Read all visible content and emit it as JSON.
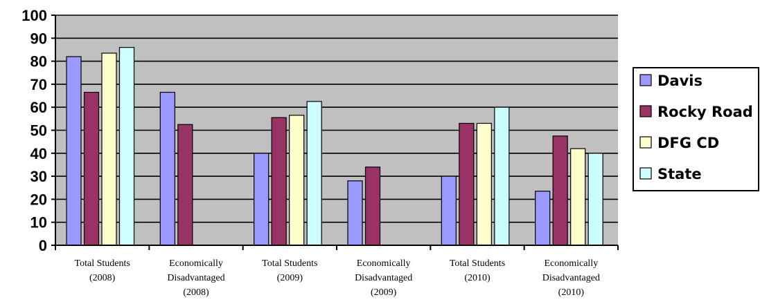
{
  "chart_data": {
    "type": "bar",
    "title": "",
    "xlabel": "",
    "ylabel": "",
    "ylim": [
      0,
      100
    ],
    "yticks": [
      0,
      10,
      20,
      30,
      40,
      50,
      60,
      70,
      80,
      90,
      100
    ],
    "grid": true,
    "legend_position": "right",
    "categories": [
      [
        "Total Students",
        "(2008)"
      ],
      [
        "Economically",
        "Disadvantaged",
        "(2008)"
      ],
      [
        "Total Students",
        "(2009)"
      ],
      [
        "Economically",
        "Disadvantaged",
        "(2009)"
      ],
      [
        "Total Students",
        "(2010)"
      ],
      [
        "Economically",
        "Disadvantaged",
        "(2010)"
      ]
    ],
    "series": [
      {
        "name": "Davis",
        "color": "#9999ff",
        "values": [
          82,
          66.5,
          40,
          28,
          30,
          23.5
        ]
      },
      {
        "name": "Rocky Road",
        "color": "#993366",
        "values": [
          66.5,
          52.5,
          55.5,
          34,
          53,
          47.5
        ]
      },
      {
        "name": "DFG CD",
        "color": "#ffffcc",
        "values": [
          83.5,
          null,
          56.5,
          null,
          53,
          42
        ]
      },
      {
        "name": "State",
        "color": "#ccffff",
        "values": [
          86,
          null,
          62.5,
          null,
          60,
          40
        ]
      }
    ],
    "colors": {
      "plot_background": "#c0c0c0",
      "gridline": "#000000",
      "bar_outline": "#000000"
    }
  }
}
